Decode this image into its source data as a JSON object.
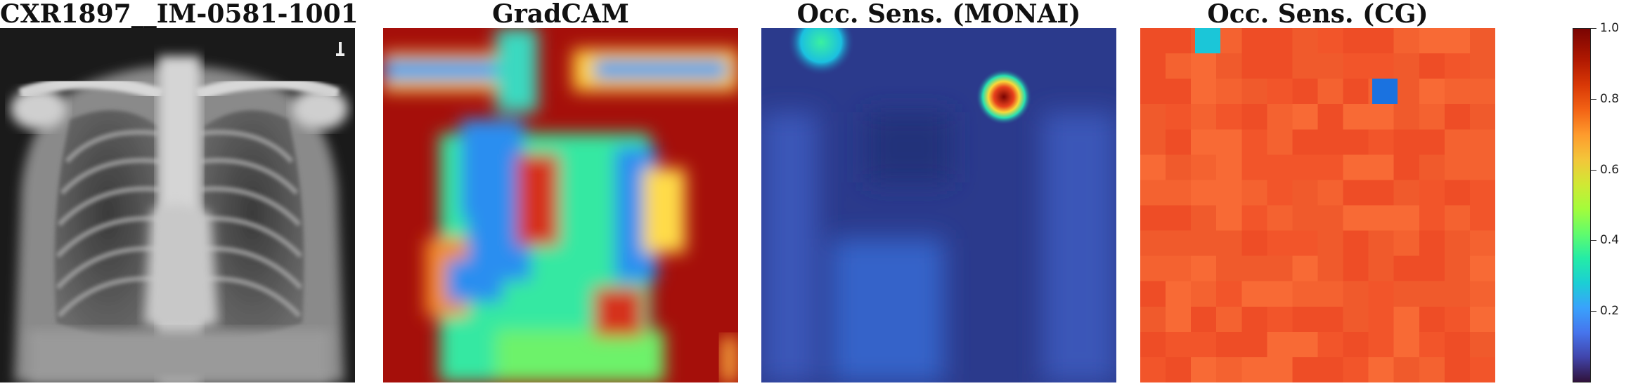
{
  "panels": [
    {
      "title": "CXR1897__IM-0581-1001"
    },
    {
      "title": "GradCAM"
    },
    {
      "title": "Occ. Sens. (MONAI)"
    },
    {
      "title": "Occ. Sens. (CG)"
    }
  ],
  "colorbar": {
    "colormap": "turbo",
    "range": [
      0.0,
      1.0
    ],
    "ticks": [
      "0.2",
      "0.4",
      "0.6",
      "0.8",
      "1.0"
    ]
  },
  "colors": {
    "gradcam_background": "#a50f0a",
    "monai_background": "#2b3a8c",
    "cg_background": "#f2532a",
    "cg_low_cell_cyan": "#1bc6d8",
    "cg_low_cell_blue": "#1a72e0"
  }
}
